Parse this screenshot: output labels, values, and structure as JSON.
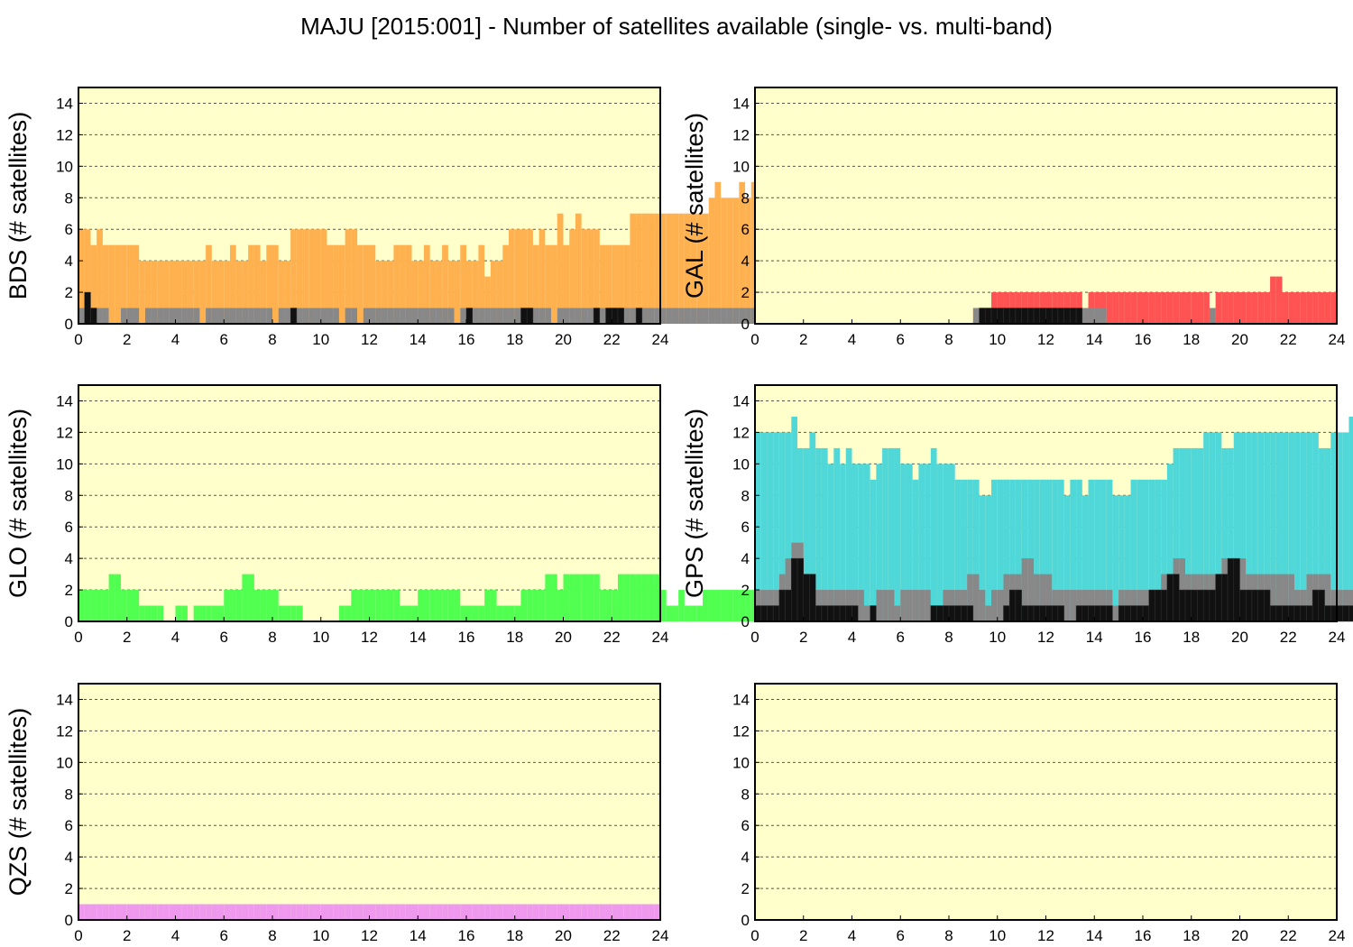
{
  "title": "MAJU [2015:001] - Number of satellites available (single- vs. multi-band)",
  "colors": {
    "background": "#ffffcc",
    "single_band_gray": "#888888",
    "multi_band_black": "#111111"
  },
  "chart_data": [
    {
      "type": "area",
      "ylabel": "BDS (# satellites)",
      "color": "#ffb150",
      "xlim": [
        0,
        24
      ],
      "ylim": [
        0,
        15
      ],
      "xticks": [
        0,
        2,
        4,
        6,
        8,
        10,
        12,
        14,
        16,
        18,
        20,
        22,
        24
      ],
      "yticks": [
        0,
        2,
        4,
        6,
        8,
        10,
        12,
        14
      ],
      "grid": true,
      "bin_hours": 0.25,
      "total": [
        6,
        6,
        5,
        6,
        5,
        5,
        5,
        5,
        5,
        5,
        4,
        4,
        4,
        4,
        4,
        4,
        4,
        4,
        4,
        4,
        4,
        5,
        4,
        4,
        4,
        5,
        4,
        4,
        5,
        5,
        4,
        5,
        5,
        4,
        4,
        6,
        6,
        6,
        6,
        6,
        6,
        5,
        5,
        5,
        6,
        6,
        5,
        5,
        5,
        4,
        4,
        4,
        5,
        5,
        5,
        4,
        4,
        5,
        4,
        4,
        5,
        4,
        4,
        5,
        4,
        4,
        5,
        3,
        4,
        4,
        5,
        6,
        6,
        6,
        6,
        5,
        6,
        5,
        5,
        7,
        5,
        6,
        7,
        6,
        6,
        6,
        5,
        5,
        5,
        5,
        5,
        7,
        7,
        7,
        7,
        7,
        7,
        7,
        7,
        7,
        7,
        7,
        7,
        7,
        8,
        9,
        8,
        8,
        8,
        9,
        8,
        9,
        8,
        8,
        8,
        8,
        8,
        8,
        8,
        8
      ],
      "single": [
        1,
        1,
        1,
        1,
        1,
        0,
        0,
        1,
        1,
        1,
        0,
        1,
        1,
        1,
        1,
        1,
        1,
        1,
        1,
        1,
        0,
        1,
        1,
        1,
        1,
        1,
        1,
        1,
        1,
        1,
        1,
        1,
        0,
        1,
        1,
        1,
        1,
        1,
        1,
        1,
        1,
        1,
        1,
        0,
        1,
        1,
        0,
        1,
        1,
        1,
        1,
        1,
        1,
        1,
        1,
        1,
        1,
        1,
        1,
        1,
        1,
        1,
        0,
        1,
        1,
        1,
        1,
        1,
        1,
        1,
        1,
        1,
        1,
        1,
        1,
        1,
        1,
        1,
        0,
        1,
        1,
        1,
        1,
        1,
        1,
        1,
        1,
        1,
        1,
        1,
        1,
        1,
        0,
        1,
        1,
        1,
        1,
        1,
        1,
        1,
        1,
        1,
        1,
        1,
        1,
        1,
        1,
        1,
        1,
        1,
        1,
        1,
        1,
        1,
        1,
        1,
        1,
        1,
        1,
        1
      ],
      "multi": [
        0,
        2,
        1,
        0,
        0,
        0,
        0,
        0,
        0,
        0,
        0,
        0,
        0,
        0,
        0,
        0,
        0,
        0,
        0,
        0,
        0,
        0,
        0,
        0,
        0,
        0,
        0,
        0,
        0,
        0,
        0,
        0,
        0,
        0,
        0,
        1,
        0,
        0,
        0,
        0,
        0,
        0,
        0,
        0,
        0,
        0,
        0,
        0,
        0,
        0,
        0,
        0,
        0,
        0,
        0,
        0,
        0,
        0,
        0,
        0,
        0,
        0,
        0,
        0,
        1,
        0,
        0,
        0,
        0,
        0,
        0,
        0,
        0,
        1,
        1,
        0,
        0,
        0,
        0,
        0,
        0,
        0,
        0,
        0,
        0,
        1,
        0,
        1,
        1,
        1,
        0,
        0,
        1,
        0,
        0,
        0,
        0,
        0,
        0,
        0,
        0,
        0,
        0,
        0,
        0,
        0,
        0,
        0,
        0,
        0,
        0,
        0,
        0,
        0,
        0,
        0,
        0,
        1,
        1,
        1,
        1
      ]
    },
    {
      "type": "area",
      "ylabel": "GAL (# satellites)",
      "color": "#ff5252",
      "xlim": [
        0,
        24
      ],
      "ylim": [
        0,
        15
      ],
      "xticks": [
        0,
        2,
        4,
        6,
        8,
        10,
        12,
        14,
        16,
        18,
        20,
        22,
        24
      ],
      "yticks": [
        0,
        2,
        4,
        6,
        8,
        10,
        12,
        14
      ],
      "grid": true,
      "bin_hours": 0.25,
      "total": [
        0,
        0,
        0,
        0,
        0,
        0,
        0,
        0,
        0,
        0,
        0,
        0,
        0,
        0,
        0,
        0,
        0,
        0,
        0,
        0,
        0,
        0,
        0,
        0,
        0,
        0,
        0,
        0,
        0,
        0,
        0,
        0,
        0,
        0,
        0,
        0,
        1,
        1,
        1,
        2,
        2,
        2,
        2,
        2,
        2,
        2,
        2,
        2,
        2,
        2,
        2,
        2,
        2,
        2,
        1,
        2,
        2,
        2,
        2,
        2,
        2,
        2,
        2,
        2,
        2,
        2,
        2,
        2,
        2,
        2,
        2,
        2,
        2,
        2,
        2,
        1,
        2,
        2,
        2,
        2,
        2,
        2,
        2,
        2,
        2,
        3,
        3,
        2,
        2,
        2,
        2,
        2,
        2,
        2,
        2,
        2
      ],
      "single": [
        0,
        0,
        0,
        0,
        0,
        0,
        0,
        0,
        0,
        0,
        0,
        0,
        0,
        0,
        0,
        0,
        0,
        0,
        0,
        0,
        0,
        0,
        0,
        0,
        0,
        0,
        0,
        0,
        0,
        0,
        0,
        0,
        0,
        0,
        0,
        0,
        1,
        1,
        1,
        1,
        1,
        1,
        1,
        1,
        1,
        1,
        1,
        1,
        1,
        1,
        1,
        1,
        1,
        1,
        1,
        1,
        1,
        1,
        0,
        0,
        0,
        0,
        0,
        0,
        0,
        0,
        0,
        0,
        0,
        0,
        0,
        0,
        0,
        0,
        0,
        1,
        0,
        0,
        0,
        0,
        0,
        0,
        0,
        0,
        0,
        0,
        0,
        0,
        0,
        0,
        0,
        0,
        0,
        0,
        0,
        0
      ],
      "multi": [
        0,
        0,
        0,
        0,
        0,
        0,
        0,
        0,
        0,
        0,
        0,
        0,
        0,
        0,
        0,
        0,
        0,
        0,
        0,
        0,
        0,
        0,
        0,
        0,
        0,
        0,
        0,
        0,
        0,
        0,
        0,
        0,
        0,
        0,
        0,
        0,
        0,
        1,
        1,
        1,
        1,
        1,
        1,
        1,
        1,
        1,
        1,
        1,
        1,
        1,
        1,
        1,
        1,
        1,
        0,
        0,
        0,
        0,
        0,
        0,
        0,
        0,
        0,
        0,
        0,
        0,
        0,
        0,
        0,
        0,
        0,
        0,
        0,
        0,
        0,
        0,
        0,
        0,
        0,
        0,
        0,
        0,
        0,
        0,
        0,
        0,
        0,
        0,
        0,
        0,
        0,
        0,
        0,
        0,
        0,
        0
      ]
    },
    {
      "type": "area",
      "ylabel": "GLO (# satellites)",
      "color": "#50ff50",
      "xlim": [
        0,
        24
      ],
      "ylim": [
        0,
        15
      ],
      "xticks": [
        0,
        2,
        4,
        6,
        8,
        10,
        12,
        14,
        16,
        18,
        20,
        22,
        24
      ],
      "yticks": [
        0,
        2,
        4,
        6,
        8,
        10,
        12,
        14
      ],
      "grid": true,
      "bin_hours": 0.25,
      "total": [
        2,
        2,
        2,
        2,
        2,
        3,
        3,
        2,
        2,
        2,
        1,
        1,
        1,
        1,
        0,
        0,
        1,
        1,
        0,
        1,
        1,
        1,
        1,
        1,
        2,
        2,
        2,
        3,
        3,
        2,
        2,
        2,
        2,
        1,
        1,
        1,
        1,
        0,
        0,
        0,
        0,
        0,
        0,
        1,
        1,
        2,
        2,
        2,
        2,
        2,
        2,
        2,
        2,
        1,
        1,
        1,
        2,
        2,
        2,
        2,
        2,
        2,
        2,
        1,
        1,
        1,
        1,
        2,
        2,
        1,
        1,
        1,
        1,
        2,
        2,
        2,
        2,
        3,
        3,
        2,
        3,
        3,
        3,
        3,
        3,
        3,
        2,
        2,
        2,
        3,
        3,
        3,
        3,
        3,
        3,
        3,
        2,
        1,
        1,
        2,
        1,
        1,
        1,
        2,
        2,
        2,
        2,
        2,
        2,
        2,
        2,
        2,
        2,
        2,
        2,
        3,
        4,
        4,
        3,
        3
      ],
      "single": [
        0,
        0,
        0,
        0,
        0,
        0,
        0,
        0,
        0,
        0,
        0,
        0,
        0,
        0,
        0,
        0,
        0,
        0,
        0,
        0,
        0,
        0,
        0,
        0,
        0,
        0,
        0,
        0,
        0,
        0,
        0,
        0,
        0,
        0,
        0,
        0,
        0,
        0,
        0,
        0,
        0,
        0,
        0,
        0,
        0,
        0,
        0,
        0,
        0,
        0,
        0,
        0,
        0,
        0,
        0,
        0,
        0,
        0,
        0,
        0,
        0,
        0,
        0,
        0,
        0,
        0,
        0,
        0,
        0,
        0,
        0,
        0,
        0,
        0,
        0,
        0,
        0,
        0,
        0,
        0,
        0,
        0,
        0,
        0,
        0,
        0,
        0,
        0,
        0,
        0,
        0,
        0,
        0,
        0,
        0,
        0,
        0,
        0,
        0,
        0,
        0,
        0,
        0,
        0,
        0,
        0,
        0,
        0,
        0,
        0,
        0,
        0,
        0,
        0,
        0,
        0,
        0,
        0,
        0,
        0
      ],
      "multi": [
        0,
        0,
        0,
        0,
        0,
        0,
        0,
        0,
        0,
        0,
        0,
        0,
        0,
        0,
        0,
        0,
        0,
        0,
        0,
        0,
        0,
        0,
        0,
        0,
        0,
        0,
        0,
        0,
        0,
        0,
        0,
        0,
        0,
        0,
        0,
        0,
        0,
        0,
        0,
        0,
        0,
        0,
        0,
        0,
        0,
        0,
        0,
        0,
        0,
        0,
        0,
        0,
        0,
        0,
        0,
        0,
        0,
        0,
        0,
        0,
        0,
        0,
        0,
        0,
        0,
        0,
        0,
        0,
        0,
        0,
        0,
        0,
        0,
        0,
        0,
        0,
        0,
        0,
        0,
        0,
        0,
        0,
        0,
        0,
        0,
        0,
        0,
        0,
        0,
        0,
        0,
        0,
        0,
        0,
        0,
        0,
        0,
        0,
        0,
        0,
        0,
        0,
        0,
        0,
        0,
        0,
        0,
        0,
        0,
        0,
        0,
        0,
        0,
        0,
        0,
        0,
        0,
        0,
        0,
        0
      ]
    },
    {
      "type": "area",
      "ylabel": "GPS (# satellites)",
      "color": "#50d8d8",
      "xlim": [
        0,
        24
      ],
      "ylim": [
        0,
        15
      ],
      "xticks": [
        0,
        2,
        4,
        6,
        8,
        10,
        12,
        14,
        16,
        18,
        20,
        22,
        24
      ],
      "yticks": [
        0,
        2,
        4,
        6,
        8,
        10,
        12,
        14
      ],
      "grid": true,
      "bin_hours": 0.25,
      "total": [
        12,
        12,
        12,
        12,
        12,
        12,
        13,
        11,
        11,
        12,
        11,
        11,
        10,
        11,
        10,
        11,
        10,
        10,
        10,
        9,
        10,
        11,
        11,
        11,
        10,
        10,
        9,
        10,
        10,
        11,
        10,
        10,
        10,
        9,
        9,
        9,
        9,
        8,
        8,
        9,
        9,
        9,
        9,
        9,
        9,
        9,
        9,
        9,
        9,
        9,
        9,
        8,
        9,
        9,
        8,
        9,
        9,
        9,
        9,
        8,
        8,
        8,
        9,
        9,
        9,
        9,
        9,
        9,
        10,
        11,
        11,
        11,
        11,
        11,
        12,
        12,
        12,
        11,
        11,
        12,
        12,
        12,
        12,
        12,
        12,
        12,
        12,
        12,
        12,
        12,
        12,
        12,
        12,
        11,
        11,
        12,
        12,
        12,
        13,
        13,
        12,
        12,
        12,
        13,
        13,
        13,
        13,
        13,
        13,
        13
      ],
      "single": [
        2,
        2,
        2,
        2,
        3,
        4,
        5,
        5,
        3,
        3,
        2,
        2,
        2,
        2,
        2,
        2,
        2,
        2,
        1,
        1,
        2,
        2,
        2,
        1,
        2,
        2,
        2,
        2,
        2,
        1,
        1,
        2,
        2,
        2,
        2,
        3,
        3,
        2,
        1,
        2,
        2,
        3,
        3,
        3,
        4,
        4,
        3,
        3,
        3,
        2,
        2,
        2,
        2,
        2,
        2,
        2,
        2,
        2,
        2,
        1,
        2,
        2,
        2,
        2,
        2,
        2,
        2,
        3,
        2,
        4,
        4,
        3,
        3,
        3,
        3,
        3,
        3,
        4,
        4,
        4,
        4,
        3,
        3,
        3,
        3,
        3,
        3,
        3,
        3,
        2,
        2,
        3,
        3,
        3,
        3,
        2,
        2,
        2,
        2,
        2,
        2,
        3,
        3,
        3,
        3,
        3,
        3,
        3,
        3,
        3
      ],
      "multi": [
        1,
        1,
        1,
        1,
        2,
        2,
        4,
        4,
        3,
        3,
        1,
        1,
        1,
        1,
        1,
        1,
        1,
        0,
        0,
        1,
        0,
        0,
        0,
        0,
        0,
        0,
        0,
        0,
        0,
        1,
        1,
        1,
        1,
        1,
        1,
        1,
        0,
        0,
        0,
        0,
        0,
        1,
        2,
        2,
        1,
        1,
        1,
        1,
        1,
        1,
        1,
        0,
        0,
        1,
        1,
        1,
        1,
        1,
        1,
        0,
        1,
        1,
        1,
        1,
        1,
        2,
        2,
        2,
        3,
        3,
        2,
        2,
        2,
        2,
        2,
        2,
        3,
        3,
        4,
        4,
        2,
        2,
        2,
        2,
        2,
        1,
        1,
        1,
        1,
        1,
        1,
        1,
        2,
        2,
        1,
        1,
        1,
        1,
        1,
        1,
        2,
        3,
        3,
        2,
        2,
        2,
        1,
        1,
        1,
        1
      ]
    },
    {
      "type": "area",
      "ylabel": "QZS (# satellites)",
      "color": "#ee99ee",
      "xlim": [
        0,
        24
      ],
      "ylim": [
        0,
        15
      ],
      "xticks": [
        0,
        2,
        4,
        6,
        8,
        10,
        12,
        14,
        16,
        18,
        20,
        22,
        24
      ],
      "yticks": [
        0,
        2,
        4,
        6,
        8,
        10,
        12,
        14
      ],
      "grid": true,
      "bin_hours": 0.25,
      "total": [
        1,
        1,
        1,
        1,
        1,
        1,
        1,
        1,
        1,
        1,
        1,
        1,
        1,
        1,
        1,
        1,
        1,
        1,
        1,
        1,
        1,
        1,
        1,
        1,
        1,
        1,
        1,
        1,
        1,
        1,
        1,
        1,
        1,
        1,
        1,
        1,
        1,
        1,
        1,
        1,
        1,
        1,
        1,
        1,
        1,
        1,
        1,
        1,
        1,
        1,
        1,
        1,
        1,
        1,
        1,
        1,
        1,
        1,
        1,
        1,
        1,
        1,
        1,
        1,
        1,
        1,
        1,
        1,
        1,
        1,
        1,
        1,
        1,
        1,
        1,
        1,
        1,
        1,
        1,
        1,
        1,
        1,
        1,
        1,
        1,
        1,
        1,
        1,
        1,
        1,
        1,
        1,
        1,
        1,
        1,
        1
      ],
      "single": [],
      "multi": []
    },
    {
      "type": "area",
      "ylabel": "",
      "color": "#cccccc",
      "xlim": [
        0,
        24
      ],
      "ylim": [
        0,
        15
      ],
      "xticks": [
        0,
        2,
        4,
        6,
        8,
        10,
        12,
        14,
        16,
        18,
        20,
        22,
        24
      ],
      "yticks": [
        0,
        2,
        4,
        6,
        8,
        10,
        12,
        14
      ],
      "grid": true,
      "bin_hours": 0.25,
      "total": [],
      "single": [],
      "multi": []
    }
  ]
}
